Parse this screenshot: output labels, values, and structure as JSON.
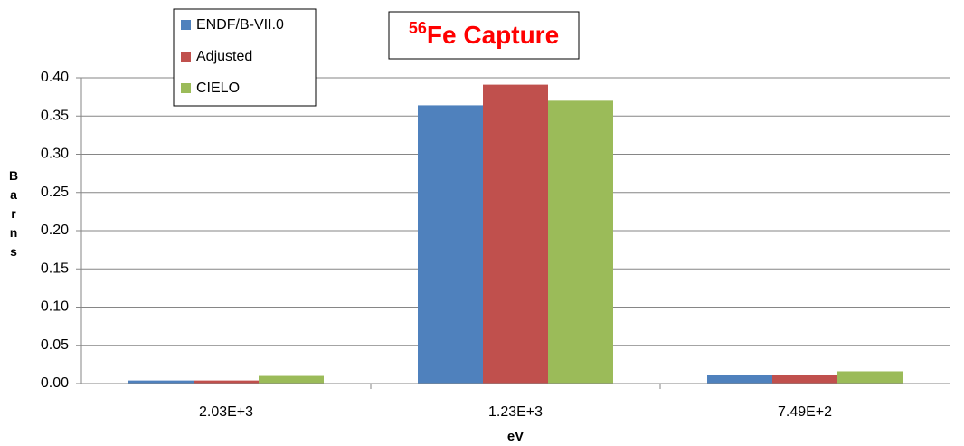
{
  "chart_data": {
    "type": "bar",
    "title": {
      "superscript": "56",
      "text": "Fe Capture"
    },
    "x_label": "eV",
    "y_label": "Barns",
    "categories": [
      "2.03E+3",
      "1.23E+3",
      "7.49E+2"
    ],
    "series": [
      {
        "name": "ENDF/B-VII.0",
        "color": "#4f81bd",
        "values": [
          0.004,
          0.364,
          0.011
        ]
      },
      {
        "name": "Adjusted",
        "color": "#c0504d",
        "values": [
          0.004,
          0.391,
          0.011
        ]
      },
      {
        "name": "CIELO",
        "color": "#9bbb59",
        "values": [
          0.01,
          0.37,
          0.016
        ]
      }
    ],
    "ylim": [
      0,
      0.4
    ],
    "yticks": [
      {
        "value": 0,
        "label": "0.00"
      },
      {
        "value": 0.05,
        "label": "0.05"
      },
      {
        "value": 0.1,
        "label": "0.10"
      },
      {
        "value": 0.15,
        "label": "0.15"
      },
      {
        "value": 0.2,
        "label": "0.20"
      },
      {
        "value": 0.25,
        "label": "0.25"
      },
      {
        "value": 0.3,
        "label": "0.30"
      },
      {
        "value": 0.35,
        "label": "0.35"
      },
      {
        "value": 0.4,
        "label": "0.40"
      }
    ],
    "grid": true,
    "legend": "top-left",
    "title_color": "#ff0000"
  }
}
